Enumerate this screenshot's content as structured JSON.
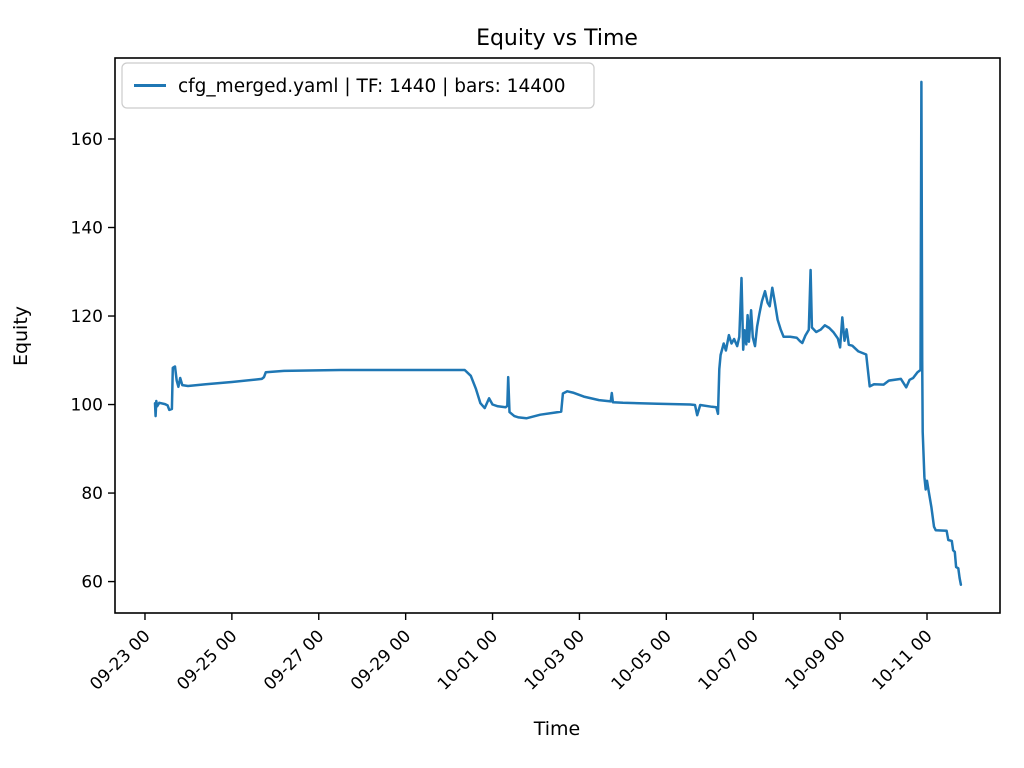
{
  "figure": {
    "title": "Equity vs Time",
    "xlabel": "Time",
    "ylabel": "Equity",
    "legend_label": "cfg_merged.yaml | TF: 1440 | bars: 14400",
    "line_color": "#1f77b4",
    "legend_border_color": "#cccccc",
    "axis_color": "#000000"
  },
  "chart_data": {
    "type": "line",
    "title": "Equity vs Time",
    "xlabel": "Time",
    "ylabel": "Equity",
    "grid": false,
    "legend_position": "upper left",
    "x_unit": "days since 09-23 00:00",
    "xlim": [
      -0.69,
      19.68
    ],
    "ylim": [
      52.9,
      178.3
    ],
    "y_ticks": [
      60,
      80,
      100,
      120,
      140,
      160
    ],
    "x_ticks": [
      {
        "t": 0,
        "label": "09-23 00"
      },
      {
        "t": 2,
        "label": "09-25 00"
      },
      {
        "t": 4,
        "label": "09-27 00"
      },
      {
        "t": 6,
        "label": "09-29 00"
      },
      {
        "t": 8,
        "label": "10-01 00"
      },
      {
        "t": 10,
        "label": "10-03 00"
      },
      {
        "t": 12,
        "label": "10-05 00"
      },
      {
        "t": 14,
        "label": "10-07 00"
      },
      {
        "t": 16,
        "label": "10-09 00"
      },
      {
        "t": 18,
        "label": "10-11 00"
      }
    ],
    "series": [
      {
        "name": "cfg_merged.yaml | TF: 1440 | bars: 14400",
        "color": "#1f77b4",
        "points": [
          [
            0.23,
            100.3
          ],
          [
            0.245,
            97.4
          ],
          [
            0.26,
            100.8
          ],
          [
            0.28,
            99.6
          ],
          [
            0.33,
            100.4
          ],
          [
            0.46,
            100.1
          ],
          [
            0.52,
            99.8
          ],
          [
            0.56,
            98.8
          ],
          [
            0.62,
            99.0
          ],
          [
            0.64,
            108.3
          ],
          [
            0.69,
            108.6
          ],
          [
            0.73,
            105.4
          ],
          [
            0.77,
            104.0
          ],
          [
            0.81,
            106.0
          ],
          [
            0.86,
            104.4
          ],
          [
            0.99,
            104.2
          ],
          [
            1.4,
            104.6
          ],
          [
            2.0,
            105.1
          ],
          [
            2.69,
            105.8
          ],
          [
            2.74,
            106.2
          ],
          [
            2.78,
            107.3
          ],
          [
            3.2,
            107.6
          ],
          [
            4.5,
            107.8
          ],
          [
            6.0,
            107.8
          ],
          [
            7.36,
            107.8
          ],
          [
            7.5,
            106.5
          ],
          [
            7.62,
            103.5
          ],
          [
            7.72,
            100.3
          ],
          [
            7.82,
            99.2
          ],
          [
            7.92,
            101.4
          ],
          [
            8.0,
            100.0
          ],
          [
            8.12,
            99.6
          ],
          [
            8.3,
            99.4
          ],
          [
            8.34,
            99.7
          ],
          [
            8.36,
            106.2
          ],
          [
            8.39,
            98.3
          ],
          [
            8.5,
            97.4
          ],
          [
            8.6,
            97.1
          ],
          [
            8.78,
            96.9
          ],
          [
            9.1,
            97.7
          ],
          [
            9.45,
            98.2
          ],
          [
            9.58,
            98.4
          ],
          [
            9.62,
            102.5
          ],
          [
            9.72,
            103.0
          ],
          [
            9.85,
            102.7
          ],
          [
            10.1,
            101.8
          ],
          [
            10.45,
            101.0
          ],
          [
            10.72,
            100.7
          ],
          [
            10.745,
            102.6
          ],
          [
            10.77,
            100.5
          ],
          [
            11.0,
            100.4
          ],
          [
            11.8,
            100.2
          ],
          [
            12.55,
            100.0
          ],
          [
            12.66,
            99.9
          ],
          [
            12.71,
            97.6
          ],
          [
            12.78,
            99.9
          ],
          [
            13.05,
            99.5
          ],
          [
            13.15,
            99.4
          ],
          [
            13.19,
            97.9
          ],
          [
            13.22,
            108.0
          ],
          [
            13.25,
            111.2
          ],
          [
            13.32,
            113.8
          ],
          [
            13.37,
            112.2
          ],
          [
            13.44,
            115.7
          ],
          [
            13.5,
            113.8
          ],
          [
            13.56,
            114.8
          ],
          [
            13.63,
            113.2
          ],
          [
            13.68,
            115.3
          ],
          [
            13.73,
            128.6
          ],
          [
            13.77,
            112.4
          ],
          [
            13.8,
            116.8
          ],
          [
            13.84,
            113.6
          ],
          [
            13.87,
            120.2
          ],
          [
            13.9,
            114.2
          ],
          [
            13.95,
            121.3
          ],
          [
            13.99,
            115.2
          ],
          [
            14.04,
            113.2
          ],
          [
            14.09,
            117.6
          ],
          [
            14.14,
            120.4
          ],
          [
            14.2,
            123.3
          ],
          [
            14.27,
            125.6
          ],
          [
            14.33,
            123.0
          ],
          [
            14.38,
            122.2
          ],
          [
            14.44,
            126.4
          ],
          [
            14.5,
            123.0
          ],
          [
            14.56,
            119.2
          ],
          [
            14.63,
            117.0
          ],
          [
            14.7,
            115.3
          ],
          [
            14.85,
            115.3
          ],
          [
            15.0,
            115.1
          ],
          [
            15.08,
            114.3
          ],
          [
            15.13,
            113.9
          ],
          [
            15.2,
            115.6
          ],
          [
            15.28,
            116.9
          ],
          [
            15.32,
            130.4
          ],
          [
            15.35,
            117.4
          ],
          [
            15.45,
            116.4
          ],
          [
            15.55,
            116.9
          ],
          [
            15.65,
            117.9
          ],
          [
            15.75,
            117.3
          ],
          [
            15.85,
            116.3
          ],
          [
            15.95,
            114.9
          ],
          [
            16.0,
            112.9
          ],
          [
            16.05,
            119.7
          ],
          [
            16.1,
            114.4
          ],
          [
            16.15,
            117.0
          ],
          [
            16.2,
            113.5
          ],
          [
            16.28,
            113.3
          ],
          [
            16.42,
            112.0
          ],
          [
            16.6,
            111.3
          ],
          [
            16.68,
            104.1
          ],
          [
            16.78,
            104.6
          ],
          [
            17.0,
            104.5
          ],
          [
            17.12,
            105.4
          ],
          [
            17.4,
            105.8
          ],
          [
            17.52,
            103.9
          ],
          [
            17.6,
            105.6
          ],
          [
            17.68,
            106.0
          ],
          [
            17.78,
            107.3
          ],
          [
            17.85,
            107.8
          ],
          [
            17.87,
            172.9
          ],
          [
            17.89,
            110.0
          ],
          [
            17.9,
            93.8
          ],
          [
            17.94,
            83.6
          ],
          [
            17.97,
            80.8
          ],
          [
            18.0,
            82.8
          ],
          [
            18.04,
            80.4
          ],
          [
            18.1,
            76.8
          ],
          [
            18.16,
            72.4
          ],
          [
            18.2,
            71.6
          ],
          [
            18.45,
            71.5
          ],
          [
            18.49,
            69.4
          ],
          [
            18.57,
            69.2
          ],
          [
            18.6,
            67.1
          ],
          [
            18.64,
            66.7
          ],
          [
            18.67,
            63.3
          ],
          [
            18.72,
            63.0
          ],
          [
            18.75,
            60.8
          ],
          [
            18.78,
            59.3
          ]
        ]
      }
    ]
  }
}
